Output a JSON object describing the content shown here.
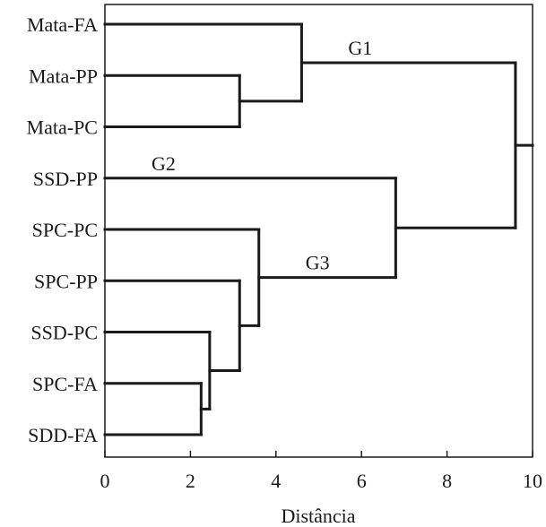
{
  "chart_data": {
    "type": "dendrogram",
    "xlabel": "Distância",
    "xlim": [
      0,
      10
    ],
    "xticks": [
      0,
      2,
      4,
      6,
      8,
      10
    ],
    "leaves": [
      "Mata-FA",
      "Mata-PP",
      "Mata-PC",
      "SSD-PP",
      "SPC-PC",
      "SPC-PP",
      "SSD-PC",
      "SPC-FA",
      "SDD-FA"
    ],
    "merges": [
      {
        "left": "SPC-FA",
        "right": "SDD-FA",
        "distance": 2.25
      },
      {
        "left": "SSD-PC",
        "right": "M1",
        "distance": 2.45
      },
      {
        "left": "SPC-PP",
        "right": "M2",
        "distance": 3.15
      },
      {
        "left": "SPC-PC",
        "right": "M3",
        "distance": 3.6
      },
      {
        "left": "Mata-PP",
        "right": "Mata-PC",
        "distance": 3.15
      },
      {
        "left": "Mata-FA",
        "right": "M5",
        "distance": 4.6
      },
      {
        "left": "SSD-PP",
        "right": "M4",
        "distance": 6.8
      },
      {
        "left": "M6",
        "right": "M7",
        "distance": 9.6
      }
    ],
    "root_stub_distance": 10,
    "group_labels": [
      {
        "text": "G1",
        "node": "M6"
      },
      {
        "text": "G2",
        "node": "SSD-PP"
      },
      {
        "text": "G3",
        "node": "M4"
      }
    ]
  }
}
